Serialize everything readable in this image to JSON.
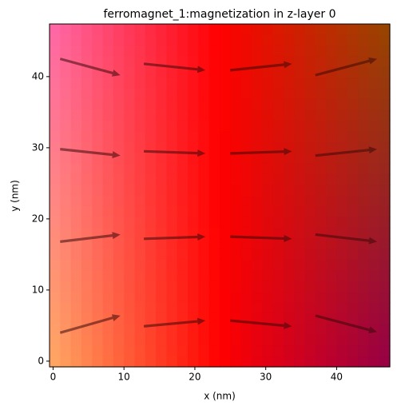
{
  "chart_data": {
    "type": "quiver",
    "title": "ferromagnet_1:magnetization in z-layer 0",
    "x_label": "x (nm)",
    "y_label": "y (nm)",
    "xlim": [
      -0.5,
      47.5
    ],
    "ylim": [
      -0.8,
      47.4
    ],
    "xticks": [
      0,
      10,
      20,
      30,
      40
    ],
    "yticks": [
      0,
      10,
      20,
      30,
      40
    ],
    "color": "#3a0a0a",
    "x": [
      1,
      12.8,
      25,
      37,
      1,
      12.8,
      25,
      37,
      1,
      12.8,
      25,
      37,
      1,
      12.8,
      25,
      37
    ],
    "y": [
      42.5,
      41.8,
      40.9,
      40.2,
      29.8,
      29.5,
      29.2,
      28.9,
      16.8,
      17.2,
      17.5,
      17.8,
      4,
      4.9,
      5.7,
      6.4
    ],
    "u": [
      8.5,
      8.7,
      8.7,
      8.7,
      8.5,
      8.7,
      8.7,
      8.7,
      8.5,
      8.7,
      8.7,
      8.7,
      8.5,
      8.7,
      8.7,
      8.7
    ],
    "v": [
      -2.3,
      -0.9,
      0.9,
      2.3,
      -0.9,
      -0.3,
      0.3,
      0.9,
      1.0,
      0.3,
      -0.3,
      -1.0,
      2.4,
      0.8,
      -0.8,
      -2.3
    ]
  }
}
